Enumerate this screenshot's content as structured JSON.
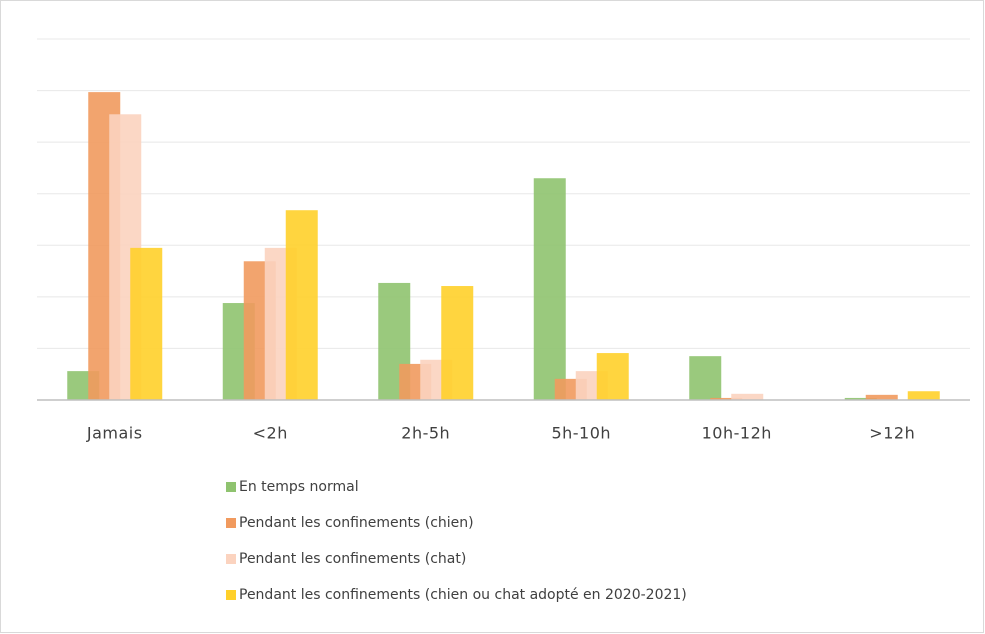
{
  "chart_data": {
    "type": "bar",
    "categories": [
      "Jamais",
      "<2h",
      "2h-5h",
      "5h-10h",
      "10h-12h",
      ">12h"
    ],
    "series": [
      {
        "name": "En temps normal",
        "color": "#8fc36f",
        "values": [
          0.56,
          1.88,
          2.27,
          4.3,
          0.85,
          0.04
        ]
      },
      {
        "name": "Pendant les confinements (chien)",
        "color": "#f19a5e",
        "values": [
          5.97,
          2.69,
          0.7,
          0.41,
          0.04,
          0.1
        ]
      },
      {
        "name": "Pendant les confinements (chat)",
        "color": "#fbd3bf",
        "values": [
          5.54,
          2.95,
          0.78,
          0.56,
          0.12,
          0
        ]
      },
      {
        "name": "Pendant les confinements (chien ou chat adopté en 2020-2021)",
        "color": "#ffd02a",
        "values": [
          2.95,
          3.68,
          2.21,
          0.91,
          0,
          0.17
        ]
      }
    ],
    "ylim": [
      0,
      7
    ],
    "yticks": [
      0,
      1,
      2,
      3,
      4,
      5,
      6,
      7
    ],
    "grid": true
  }
}
